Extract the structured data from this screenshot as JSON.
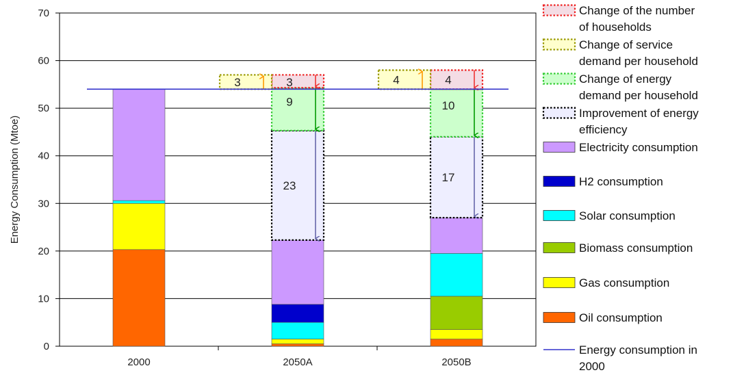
{
  "chart_data": {
    "type": "bar",
    "stacked": true,
    "ylabel": "Energy Consumption (Mtoe)",
    "ylim": [
      0,
      70
    ],
    "yticks": [
      0,
      10,
      20,
      30,
      40,
      50,
      60,
      70
    ],
    "categories": [
      "2000",
      "2050A",
      "2050B"
    ],
    "series": [
      {
        "name": "Oil consumption",
        "color": "#ff6600",
        "values": [
          20.3,
          0.5,
          1.5
        ]
      },
      {
        "name": "Gas consumption",
        "color": "#ffff00",
        "values": [
          9.7,
          1.0,
          2.0
        ]
      },
      {
        "name": "Biomass consumption",
        "color": "#99cc00",
        "values": [
          0,
          0,
          7.0
        ]
      },
      {
        "name": "Solar  consumption",
        "color": "#00ffff",
        "values": [
          0.6,
          3.5,
          9.0
        ]
      },
      {
        "name": "H2 consumption",
        "color": "#0000cc",
        "values": [
          0,
          3.8,
          0
        ]
      },
      {
        "name": "Electricity consumption",
        "color": "#cc99ff",
        "values": [
          23.4,
          13.5,
          7.5
        ]
      }
    ],
    "changes": [
      {
        "category": "2050A",
        "energy_efficiency": 23,
        "energy_demand_per_household": 9,
        "number_of_households": 3,
        "service_demand_per_household": 3
      },
      {
        "category": "2050B",
        "energy_efficiency": 17,
        "energy_demand_per_household": 10,
        "number_of_households": 4,
        "service_demand_per_household": 4
      }
    ],
    "reference_line": {
      "name": "Energy consumption in 2000",
      "value": 54,
      "color": "#3333cc"
    },
    "grid": true,
    "legend_position": "right"
  },
  "legend": [
    {
      "label": "Change of the number of households",
      "style": "dotted",
      "fill": "#f4dce4",
      "stroke": "#ee2222"
    },
    {
      "label": "Change of service demand per household",
      "style": "dotted",
      "fill": "#ffffcc",
      "stroke": "#999900"
    },
    {
      "label": "Change of energy demand per household",
      "style": "dotted",
      "fill": "#ccffcc",
      "stroke": "#33cc33"
    },
    {
      "label": "Improvement of energy efficiency",
      "style": "dotted",
      "fill": "#eeeeff",
      "stroke": "#000000"
    },
    {
      "label": "Electricity consumption",
      "style": "solid",
      "fill": "#cc99ff"
    },
    {
      "label": "H2 consumption",
      "style": "solid",
      "fill": "#0000cc"
    },
    {
      "label": "Solar  consumption",
      "style": "solid",
      "fill": "#00ffff"
    },
    {
      "label": "Biomass consumption",
      "style": "solid",
      "fill": "#99cc00"
    },
    {
      "label": "Gas consumption",
      "style": "solid",
      "fill": "#ffff00"
    },
    {
      "label": "Oil consumption",
      "style": "solid",
      "fill": "#ff6600"
    },
    {
      "label": "Energy consumption in 2000",
      "style": "line",
      "stroke": "#3333cc"
    }
  ]
}
